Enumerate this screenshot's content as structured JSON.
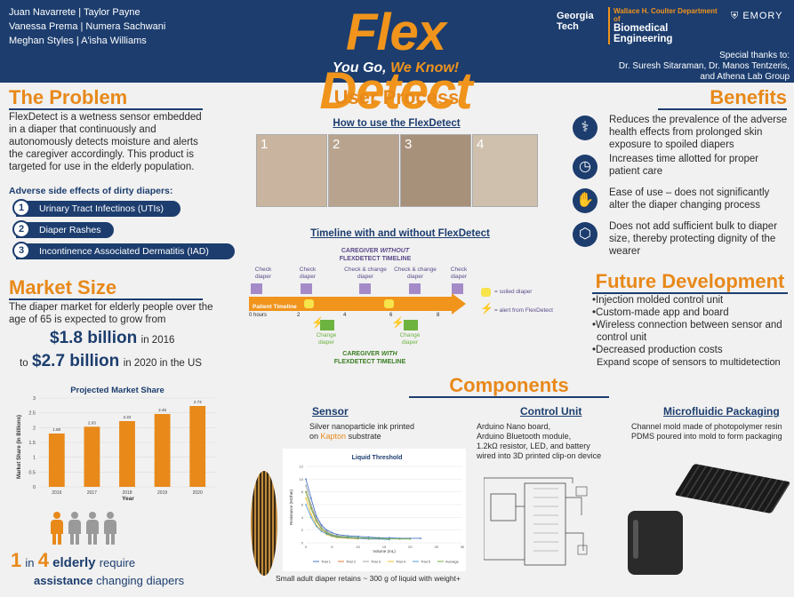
{
  "header": {
    "authors": [
      "Juan Navarrete | Taylor Payne",
      "Vanessa Prema | Numera Sachwani",
      "Meghan Styles | A'isha Williams"
    ],
    "title": "Flex Detect",
    "tagline_a": "You Go,",
    "tagline_b": "We Know!",
    "logo_georgia": "Georgia Tech",
    "logo_coulter_1": "Wallace H. Coulter Department of",
    "logo_coulter_2": "Biomedical Engineering",
    "logo_emory": "EMORY",
    "thanks": [
      "Special thanks to:",
      "Dr. Suresh Sitaraman, Dr. Manos Tentzeris,",
      "and Athena Lab Group"
    ]
  },
  "problem": {
    "heading": "The Problem",
    "body": "FlexDetect is a wetness sensor embedded in a diaper that continuously and autonomously detects moisture and alerts the caregiver accordingly. This product is targeted for use in the elderly population.",
    "effects_title": "Adverse side effects of dirty diapers:",
    "effects": [
      {
        "num": "1",
        "label": "Urinary Tract Infectinos (UTIs)"
      },
      {
        "num": "2",
        "label": "Diaper Rashes"
      },
      {
        "num": "3",
        "label": "Incontinence Associated Dermatitis (IAD)"
      }
    ]
  },
  "market": {
    "heading": "Market Size",
    "body": "The diaper market for elderly people over the age of 65 is expected to grow from",
    "v1": "$1.8 billion",
    "v1_suffix": "in 2016",
    "v2_prefix": "to",
    "v2": "$2.7 billion",
    "v2_suffix": "in 2020 in the US",
    "stat_1": "1",
    "stat_in": "in",
    "stat_4": "4",
    "stat_elderly": "elderly",
    "stat_require": "require",
    "stat_assist": "assistance",
    "stat_changing": "changing diapers"
  },
  "chart_data": [
    {
      "type": "bar",
      "title": "Projected Market Share",
      "xlabel": "Year",
      "ylabel": "Market Share (in Billions)",
      "categories": [
        "2016",
        "2017",
        "2018",
        "2019",
        "2020"
      ],
      "values": [
        1.8,
        2.03,
        2.22,
        2.46,
        2.73
      ],
      "ylim": [
        0,
        3
      ],
      "yticks": [
        "0",
        "0.5",
        "1",
        "1.5",
        "2",
        "2.5",
        "3"
      ],
      "value_labels": [
        "1.80",
        "2.03",
        "2.22",
        "2.46",
        "2.73"
      ],
      "color": "#e8891a"
    },
    {
      "type": "line",
      "title": "Liquid Threshold",
      "xlabel": "Volume (mL)",
      "ylabel": "Resistance (MOhm)",
      "xlim": [
        0,
        30
      ],
      "ylim": [
        0,
        12
      ],
      "xticks": [
        "0",
        "5",
        "10",
        "15",
        "20",
        "25",
        "30"
      ],
      "yticks": [
        "0",
        "2",
        "4",
        "6",
        "8",
        "10",
        "12"
      ],
      "series": [
        {
          "name": "Trial 1",
          "color": "#4a74c4",
          "x": [
            0,
            1,
            2,
            3,
            4,
            5,
            6,
            8,
            10,
            12,
            14,
            16,
            18,
            20,
            22
          ],
          "y": [
            10,
            7,
            4.2,
            2.8,
            2,
            1.6,
            1.3,
            1.1,
            1,
            0.9,
            0.8,
            0.8,
            0.7,
            0.7,
            0.7
          ]
        },
        {
          "name": "Trial 2",
          "color": "#e07b39",
          "x": [
            0,
            1,
            2,
            3,
            4,
            5,
            6,
            8,
            10,
            12,
            14
          ],
          "y": [
            8,
            5.5,
            3.5,
            2.2,
            1.5,
            1.2,
            1,
            0.8,
            0.7,
            0.6,
            0.6
          ]
        },
        {
          "name": "Trial 3",
          "color": "#a5a5a5",
          "x": [
            0,
            1,
            2,
            3,
            4,
            5,
            6,
            8,
            10,
            12
          ],
          "y": [
            9,
            6,
            3.8,
            2.5,
            1.8,
            1.3,
            1.1,
            0.9,
            0.8,
            0.7
          ]
        },
        {
          "name": "Trial 4",
          "color": "#f2c12e",
          "x": [
            0,
            1,
            2,
            3,
            4,
            5,
            6,
            8,
            10
          ],
          "y": [
            7,
            4.5,
            2.8,
            1.9,
            1.3,
            1,
            0.8,
            0.7,
            0.6
          ]
        },
        {
          "name": "Trial 5",
          "color": "#5b9bd5",
          "x": [
            0,
            1,
            2,
            3,
            4,
            5,
            6,
            8,
            10,
            12,
            14,
            16
          ],
          "y": [
            6,
            4,
            2.6,
            1.8,
            1.4,
            1.1,
            0.9,
            0.8,
            0.7,
            0.6,
            0.6,
            0.5
          ]
        },
        {
          "name": "Average",
          "color": "#70ad47",
          "x": [
            0,
            1,
            2,
            3,
            4,
            5,
            6,
            8,
            10,
            12,
            14,
            16,
            18,
            20
          ],
          "y": [
            8,
            5.4,
            3.4,
            2.2,
            1.6,
            1.2,
            1,
            0.9,
            0.8,
            0.7,
            0.7,
            0.6,
            0.6,
            0.6
          ]
        }
      ]
    }
  ],
  "user_process": {
    "heading": "User Process",
    "how_title": "How to use the FlexDetect",
    "photo_nums": [
      "1",
      "2",
      "3",
      "4"
    ],
    "timeline_title": "Timeline with and without FlexDetect",
    "without_1": "CAREGIVER",
    "without_2": "WITHOUT",
    "without_3": "FLEXDETECT TIMELINE",
    "with_1": "CAREGIVER",
    "with_2": "WITH",
    "with_3": "FLEXDETECT TIMELINE",
    "top_events": [
      {
        "label": "Check diaper",
        "x": 0.0
      },
      {
        "label": "Check diaper",
        "x": 0.33
      },
      {
        "label": "Check & change diaper",
        "x": 0.59
      },
      {
        "label": "Check & change diaper",
        "x": 0.85
      },
      {
        "label": "Check diaper",
        "x": 1.0
      }
    ],
    "patient_timeline": "Patient Timeline",
    "ticks": [
      "0 hours",
      "2",
      "4",
      "6",
      "8"
    ],
    "bottom_events": [
      "Change diaper",
      "Change diaper"
    ],
    "legend_soiled": "= soiled diaper",
    "legend_alert": "= alert from FlexDetect"
  },
  "benefits": {
    "heading": "Benefits",
    "items": [
      {
        "icon": "caduceus-icon",
        "glyph": "⚕",
        "text": "Reduces the prevalence of the adverse health effects from prolonged skin exposure to spoiled diapers"
      },
      {
        "icon": "clock-icon",
        "glyph": "◷",
        "text": "Increases time allotted for proper patient care"
      },
      {
        "icon": "hand-icon",
        "glyph": "✋",
        "text": "Ease of use – does not significantly alter the diaper changing process"
      },
      {
        "icon": "cube-icon",
        "glyph": "⬡",
        "text": "Does not add sufficient bulk to diaper size, thereby protecting dignity of the wearer"
      }
    ]
  },
  "future": {
    "heading": "Future Development",
    "items": [
      "Injection molded control unit",
      "Custom-made app and board",
      "Wireless connection between sensor and control unit",
      "Decreased production costs"
    ],
    "extra": "Expand scope of sensors to multidetection"
  },
  "components": {
    "heading": "Components",
    "sensor_title": "Sensor",
    "sensor_body_1": "Silver nanoparticle ink printed",
    "sensor_body_on": "on",
    "sensor_body_kapton": "Kapton",
    "sensor_body_2": "substrate",
    "sensor_caption": "Small adult diaper retains ~ 300 g of liquid with weight+",
    "control_title": "Control Unit",
    "control_body": [
      "Arduino Nano board,",
      "Arduino Bluetooth module,",
      "1.2kΩ resistor, LED, and battery",
      "wired into 3D printed clip-on device"
    ],
    "micro_title": "Microfluidic Packaging",
    "micro_body": [
      "Channel mold made of photopolymer resin",
      "PDMS poured into mold to form packaging"
    ]
  },
  "colors": {
    "navy": "#1c3d6e",
    "orange": "#e8891a",
    "green": "#6db33f",
    "purple": "#a48bc8",
    "yellow": "#f7e34a"
  }
}
